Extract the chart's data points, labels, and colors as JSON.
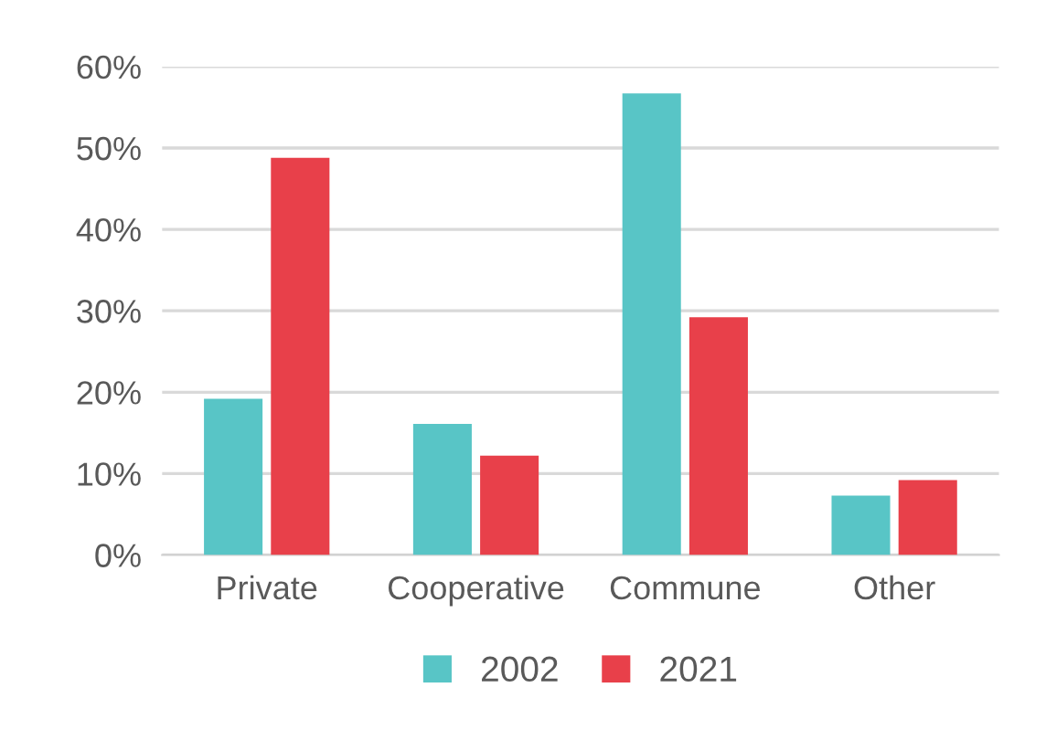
{
  "chart_data": {
    "type": "bar",
    "categories": [
      "Private",
      "Cooperative",
      "Commune",
      "Other"
    ],
    "series": [
      {
        "name": "2002",
        "color": "#58c5c6",
        "values": [
          19.2,
          16.1,
          56.7,
          7.3
        ]
      },
      {
        "name": "2021",
        "color": "#e8404a",
        "values": [
          48.8,
          12.2,
          29.2,
          9.2
        ]
      }
    ],
    "ylim": [
      0,
      60
    ],
    "yticks": [
      {
        "value": 0,
        "label": "0%"
      },
      {
        "value": 10,
        "label": "10%"
      },
      {
        "value": 20,
        "label": "20%"
      },
      {
        "value": 30,
        "label": "30%"
      },
      {
        "value": 40,
        "label": "40%"
      },
      {
        "value": 50,
        "label": "50%"
      },
      {
        "value": 60,
        "label": "60%"
      }
    ],
    "grid": "y",
    "legend": "bottom"
  }
}
